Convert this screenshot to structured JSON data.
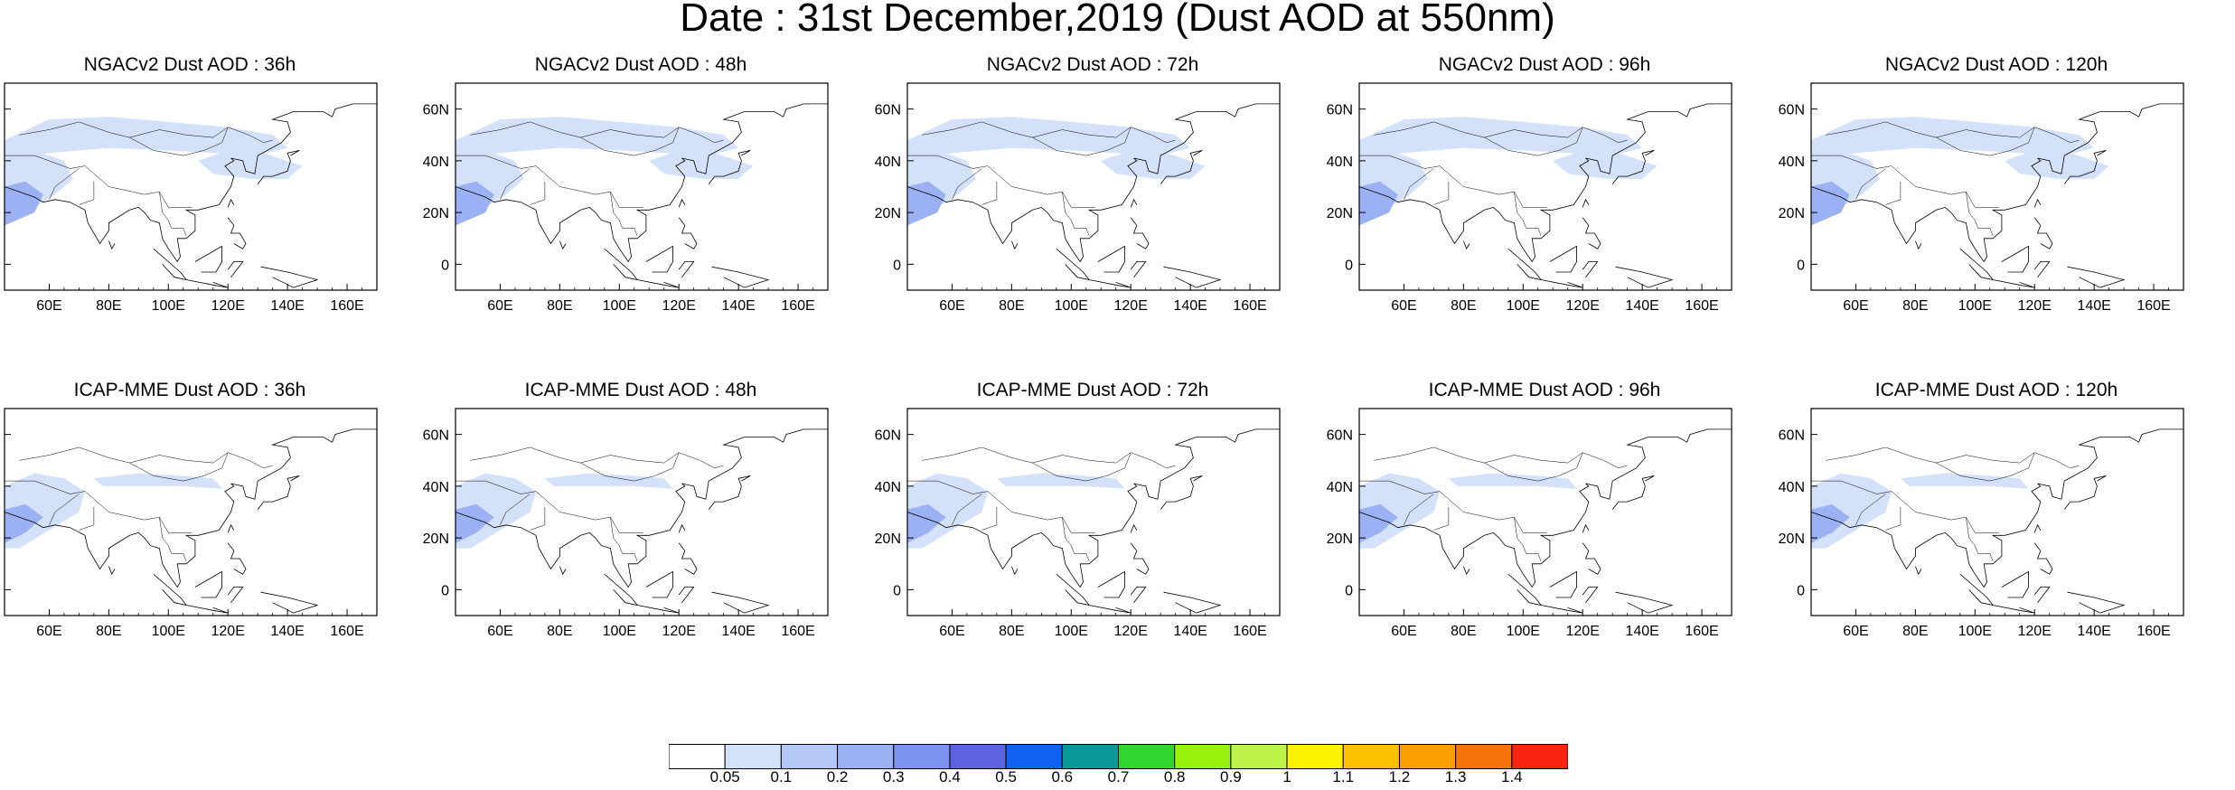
{
  "title": "Date : 31st December,2019 (Dust AOD at 550nm)",
  "panels": [
    {
      "title": "NGACv2 Dust AOD : 36h",
      "model": "NGACv2",
      "lead": "36h"
    },
    {
      "title": "NGACv2 Dust AOD : 48h",
      "model": "NGACv2",
      "lead": "48h"
    },
    {
      "title": "NGACv2 Dust AOD : 72h",
      "model": "NGACv2",
      "lead": "72h"
    },
    {
      "title": "NGACv2 Dust AOD : 96h",
      "model": "NGACv2",
      "lead": "96h"
    },
    {
      "title": "NGACv2 Dust AOD : 120h",
      "model": "NGACv2",
      "lead": "120h"
    },
    {
      "title": "ICAP-MME Dust AOD : 36h",
      "model": "ICAP-MME",
      "lead": "36h"
    },
    {
      "title": "ICAP-MME Dust AOD : 48h",
      "model": "ICAP-MME",
      "lead": "48h"
    },
    {
      "title": "ICAP-MME Dust AOD : 72h",
      "model": "ICAP-MME",
      "lead": "72h"
    },
    {
      "title": "ICAP-MME Dust AOD : 96h",
      "model": "ICAP-MME",
      "lead": "96h"
    },
    {
      "title": "ICAP-MME Dust AOD : 120h",
      "model": "ICAP-MME",
      "lead": "120h"
    }
  ],
  "map": {
    "lon_range": [
      45,
      170
    ],
    "lat_range": [
      -10,
      70
    ],
    "lon_ticks": [
      "60E",
      "80E",
      "100E",
      "120E",
      "140E",
      "160E"
    ],
    "lat_ticks": [
      "0",
      "20N",
      "40N",
      "60N"
    ]
  },
  "colorbar": {
    "levels": [
      "0.05",
      "0.1",
      "0.2",
      "0.3",
      "0.4",
      "0.5",
      "0.6",
      "0.7",
      "0.8",
      "0.9",
      "1",
      "1.1",
      "1.2",
      "1.3",
      "1.4"
    ],
    "colors": [
      "#ffffff",
      "#d4e1fb",
      "#b4c7f7",
      "#9bb1f4",
      "#7e92ef",
      "#5e63e0",
      "#0f63f0",
      "#0a9a98",
      "#32d52f",
      "#98f20e",
      "#bdf24b",
      "#fbf200",
      "#fcc100",
      "#fc9f00",
      "#f6730b",
      "#f92410"
    ]
  }
}
